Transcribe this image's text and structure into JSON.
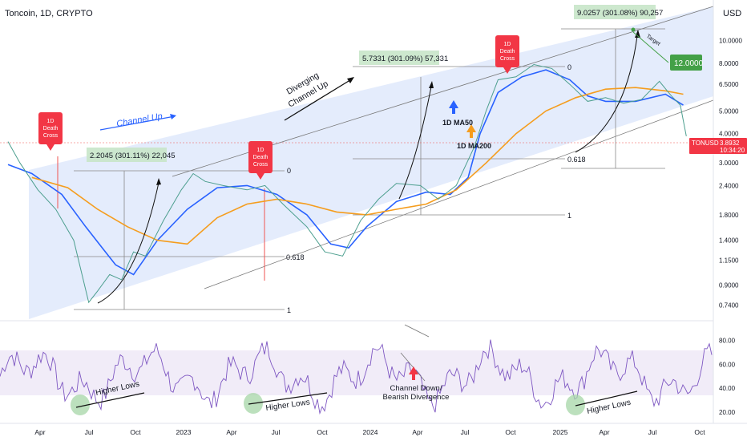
{
  "header": {
    "symbol_line": "Toncoin, 1D, CRYPTO"
  },
  "currency": "USD",
  "price_tag": {
    "symbol": "TONUSD",
    "price": "3.8932",
    "countdown": "10:34:20"
  },
  "target_tag": "12.0000",
  "colors": {
    "ma50": "#2962ff",
    "ma200": "#f59d1e",
    "price_up": "#26a69a",
    "price_down": "#ef5350",
    "rsi": "#7e57c2",
    "channel": "#dbe6fb",
    "death_cross": "#f23645",
    "target": "#43a047"
  },
  "chart_data": [
    {
      "type": "line",
      "title": "Toncoin, 1D, CRYPTO",
      "scale": "log",
      "y_ticks": [
        "10.0000",
        "8.0000",
        "6.5000",
        "5.0000",
        "4.0000",
        "3.0000",
        "2.4000",
        "1.8000",
        "1.4000",
        "1.1500",
        "0.9000",
        "0.7400"
      ],
      "y_tick_values": [
        10,
        8,
        6.5,
        5,
        4,
        3,
        2.4,
        1.8,
        1.4,
        1.15,
        0.9,
        0.74
      ],
      "ylim": [
        0.66,
        14
      ],
      "x_ticks": [
        "Apr",
        "Jul",
        "Oct",
        "2023",
        "Apr",
        "Jul",
        "Oct",
        "2024",
        "Apr",
        "Jul",
        "Oct",
        "2025",
        "Apr",
        "Jul",
        "Oct"
      ],
      "series": [
        {
          "name": "1D MA50",
          "points": [
            [
              0,
              2.95
            ],
            [
              0.4,
              2.7
            ],
            [
              0.9,
              2.2
            ],
            [
              1.3,
              1.6
            ],
            [
              1.8,
              1.1
            ],
            [
              2.1,
              1.0
            ],
            [
              2.5,
              1.4
            ],
            [
              3,
              1.9
            ],
            [
              3.5,
              2.35
            ],
            [
              4,
              2.4
            ],
            [
              4.5,
              2.2
            ],
            [
              5,
              1.8
            ],
            [
              5.4,
              1.35
            ],
            [
              5.7,
              1.3
            ],
            [
              6,
              1.6
            ],
            [
              6.5,
              2.05
            ],
            [
              7,
              2.25
            ],
            [
              7.4,
              2.2
            ],
            [
              7.7,
              2.6
            ],
            [
              7.9,
              4.0
            ],
            [
              8.2,
              6.0
            ],
            [
              8.6,
              7.0
            ],
            [
              9,
              7.5
            ],
            [
              9.4,
              6.8
            ],
            [
              9.7,
              5.8
            ],
            [
              10,
              5.5
            ],
            [
              10.5,
              5.5
            ],
            [
              11,
              5.9
            ],
            [
              11.3,
              5.3
            ]
          ]
        },
        {
          "name": "1D MA200",
          "points": [
            [
              0.4,
              2.6
            ],
            [
              1,
              2.35
            ],
            [
              1.5,
              1.9
            ],
            [
              2,
              1.6
            ],
            [
              2.5,
              1.4
            ],
            [
              3,
              1.35
            ],
            [
              3.5,
              1.75
            ],
            [
              4,
              2.0
            ],
            [
              4.5,
              2.1
            ],
            [
              5,
              2.0
            ],
            [
              5.5,
              1.85
            ],
            [
              6,
              1.8
            ],
            [
              6.5,
              1.9
            ],
            [
              7,
              2.0
            ],
            [
              7.5,
              2.3
            ],
            [
              8,
              3.0
            ],
            [
              8.5,
              4.0
            ],
            [
              9,
              5.0
            ],
            [
              9.5,
              5.7
            ],
            [
              10,
              6.2
            ],
            [
              10.5,
              6.3
            ],
            [
              11,
              6.1
            ],
            [
              11.3,
              5.9
            ]
          ]
        },
        {
          "name": "Price",
          "points": [
            [
              0,
              3.7
            ],
            [
              0.2,
              3.0
            ],
            [
              0.5,
              2.3
            ],
            [
              0.8,
              1.9
            ],
            [
              1.1,
              1.4
            ],
            [
              1.35,
              0.76
            ],
            [
              1.5,
              0.85
            ],
            [
              1.7,
              1.0
            ],
            [
              1.9,
              0.95
            ],
            [
              2.1,
              1.25
            ],
            [
              2.3,
              1.2
            ],
            [
              2.6,
              1.7
            ],
            [
              2.9,
              2.3
            ],
            [
              3.1,
              2.7
            ],
            [
              3.3,
              2.5
            ],
            [
              3.6,
              2.4
            ],
            [
              4,
              2.3
            ],
            [
              4.3,
              2.4
            ],
            [
              4.6,
              2.0
            ],
            [
              5,
              1.6
            ],
            [
              5.3,
              1.25
            ],
            [
              5.6,
              1.2
            ],
            [
              5.9,
              1.7
            ],
            [
              6.2,
              2.1
            ],
            [
              6.5,
              2.45
            ],
            [
              6.9,
              2.4
            ],
            [
              7.2,
              2.1
            ],
            [
              7.5,
              2.4
            ],
            [
              7.8,
              3.5
            ],
            [
              8,
              5.0
            ],
            [
              8.2,
              6.8
            ],
            [
              8.5,
              7.0
            ],
            [
              8.8,
              7.9
            ],
            [
              9.1,
              7.6
            ],
            [
              9.4,
              6.5
            ],
            [
              9.7,
              5.5
            ],
            [
              10,
              5.7
            ],
            [
              10.3,
              5.4
            ],
            [
              10.6,
              5.6
            ],
            [
              10.9,
              6.7
            ],
            [
              11.1,
              5.8
            ],
            [
              11.25,
              5.3
            ],
            [
              11.35,
              3.9
            ]
          ]
        }
      ],
      "annotations": [
        {
          "kind": "death_cross",
          "text": "1D Death Cross"
        },
        {
          "kind": "death_cross",
          "text": "1D Death Cross"
        },
        {
          "kind": "death_cross",
          "text": "1D Death Cross"
        },
        {
          "kind": "label",
          "text": "Channel Up"
        },
        {
          "kind": "label",
          "text": "Diverging Channel Up"
        },
        {
          "kind": "measure",
          "text": "2.2045 (301.11%) 22,045"
        },
        {
          "kind": "measure",
          "text": "5.7331 (301.09%) 57,331"
        },
        {
          "kind": "measure",
          "text": "9.0257 (301.08%) 90,257"
        },
        {
          "kind": "label",
          "text": "1D MA50"
        },
        {
          "kind": "label",
          "text": "1D MA200"
        },
        {
          "kind": "label",
          "text": "Target"
        },
        {
          "kind": "fib",
          "text": "0"
        },
        {
          "kind": "fib",
          "text": "0.618"
        },
        {
          "kind": "fib",
          "text": "1"
        },
        {
          "kind": "fib",
          "text": "0"
        },
        {
          "kind": "fib",
          "text": "0.618"
        },
        {
          "kind": "fib",
          "text": "1"
        }
      ]
    },
    {
      "type": "line",
      "title": "RSI",
      "y_ticks": [
        "80.00",
        "60.00",
        "40.00",
        "20.00"
      ],
      "y_tick_values": [
        80,
        60,
        40,
        20
      ],
      "ylim": [
        12,
        95
      ],
      "band": [
        30,
        70
      ],
      "annotations": [
        {
          "text": "Higher Lows"
        },
        {
          "text": "Higher Lows"
        },
        {
          "text": "Higher Lows"
        },
        {
          "text": "Channel Down/ Bearish Divergence"
        }
      ]
    }
  ]
}
